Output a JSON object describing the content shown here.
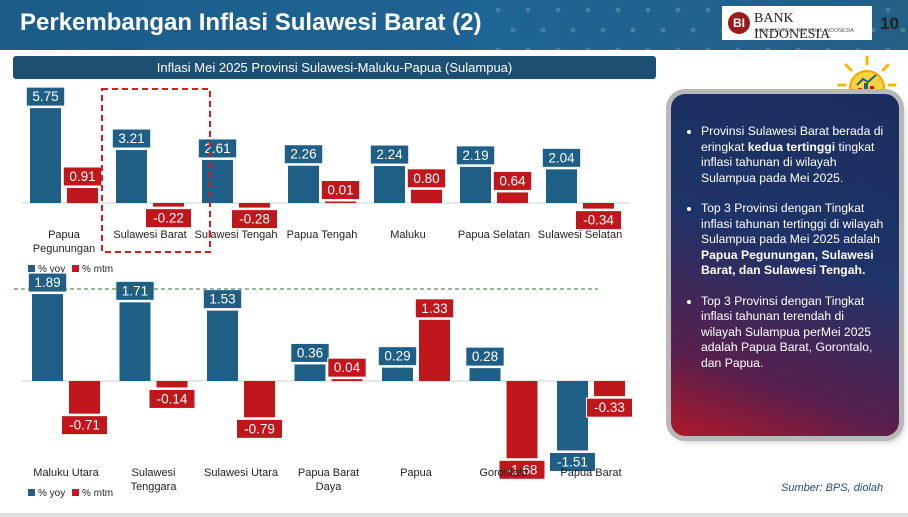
{
  "header": {
    "title": "Perkembangan Inflasi Sulawesi Barat (2)",
    "logo_name": "BANK INDONESIA",
    "logo_sub": "BANK SENTRAL REPUBLIK INDONESIA",
    "page_number": "10"
  },
  "subtitle": "Inflasi Mei 2025 Provinsi Sulawesi-Maluku-Papua (Sulampua)",
  "colors": {
    "yoy": "#1f5f86",
    "mtm": "#c0171c",
    "header": "#1e6494"
  },
  "chart_data": [
    {
      "type": "bar",
      "categories": [
        "Papua Pegunungan",
        "Sulawesi Barat",
        "Sulawesi Tengah",
        "Papua Tengah",
        "Maluku",
        "Papua Selatan",
        "Sulawesi Selatan"
      ],
      "series": [
        {
          "name": "% yoy",
          "values": [
            5.75,
            3.21,
            2.61,
            2.26,
            2.24,
            2.19,
            2.04
          ]
        },
        {
          "name": "% mtm",
          "values": [
            0.91,
            -0.22,
            -0.28,
            0.01,
            0.8,
            0.64,
            -0.34
          ]
        }
      ],
      "highlight": "Sulawesi Barat",
      "legend": "bottom-left"
    },
    {
      "type": "bar",
      "categories": [
        "Maluku Utara",
        "Sulawesi Tenggara",
        "Sulawesi Utara",
        "Papua Barat Daya",
        "Papua",
        "Gorontalo",
        "Papua Barat"
      ],
      "series": [
        {
          "name": "% yoy",
          "values": [
            1.89,
            1.71,
            1.53,
            0.36,
            0.29,
            0.28,
            -1.51
          ]
        },
        {
          "name": "% mtm",
          "values": [
            -0.71,
            -0.14,
            -0.79,
            0.04,
            1.33,
            -1.68,
            -0.33
          ]
        }
      ],
      "legend": "bottom-left"
    }
  ],
  "panel": {
    "bullets": [
      [
        {
          "t": "Provinsi Sulawesi Barat berada di eringkat "
        },
        {
          "t": "kedua tertinggi",
          "b": true
        },
        {
          "t": " tingkat inflasi tahunan di wilayah Sulampua pada Mei 2025."
        }
      ],
      [
        {
          "t": "Top 3 Provinsi dengan Tingkat inflasi tahunan tertinggi di wilayah Sulampua pada Mei 2025 adalah "
        },
        {
          "t": "Papua Pegunungan, Sulawesi Barat, dan Sulawesi Tengah.",
          "b": true
        }
      ],
      [
        {
          "t": "Top 3 Provinsi dengan Tingkat inflasi tahunan terendah di wilayah Sulampua perMei 2025 adalah Papua Barat, Gorontalo, dan Papua."
        }
      ]
    ]
  },
  "source": "Sumber: BPS, diolah"
}
